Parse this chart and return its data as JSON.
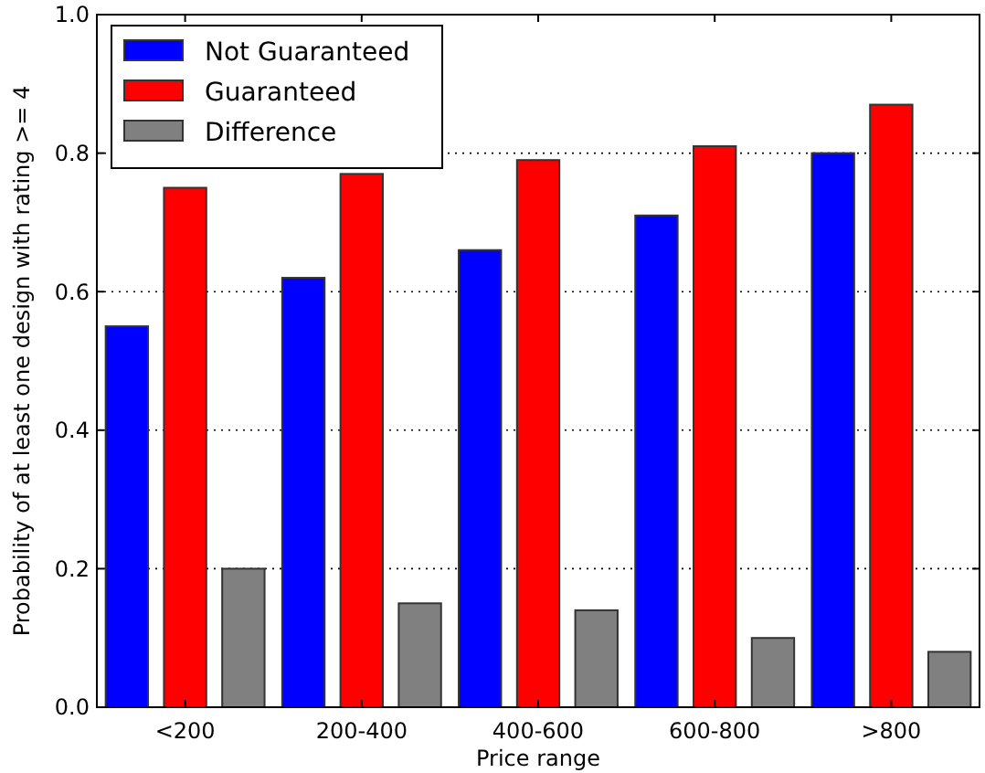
{
  "chart_data": {
    "type": "bar",
    "xlabel": "Price range",
    "ylabel": "Probability of at least one design with rating >= 4",
    "categories": [
      "<200",
      "200-400",
      "400-600",
      "600-800",
      ">800"
    ],
    "series": [
      {
        "name": "Not Guaranteed",
        "color": "#0000ff",
        "values": [
          0.55,
          0.62,
          0.66,
          0.71,
          0.8
        ]
      },
      {
        "name": "Guaranteed",
        "color": "#ff0000",
        "values": [
          0.75,
          0.77,
          0.79,
          0.81,
          0.87
        ]
      },
      {
        "name": "Difference",
        "color": "#808080",
        "values": [
          0.2,
          0.15,
          0.14,
          0.1,
          0.08
        ]
      }
    ],
    "ylim": [
      0,
      1
    ],
    "yticks": [
      {
        "value": 0,
        "label": "0.0"
      },
      {
        "value": 0.2,
        "label": "0.2"
      },
      {
        "value": 0.4,
        "label": "0.4"
      },
      {
        "value": 0.6,
        "label": "0.6"
      },
      {
        "value": 0.8,
        "label": "0.8"
      },
      {
        "value": 1,
        "label": "1.0"
      }
    ],
    "grid": "y",
    "legend": "top left"
  }
}
